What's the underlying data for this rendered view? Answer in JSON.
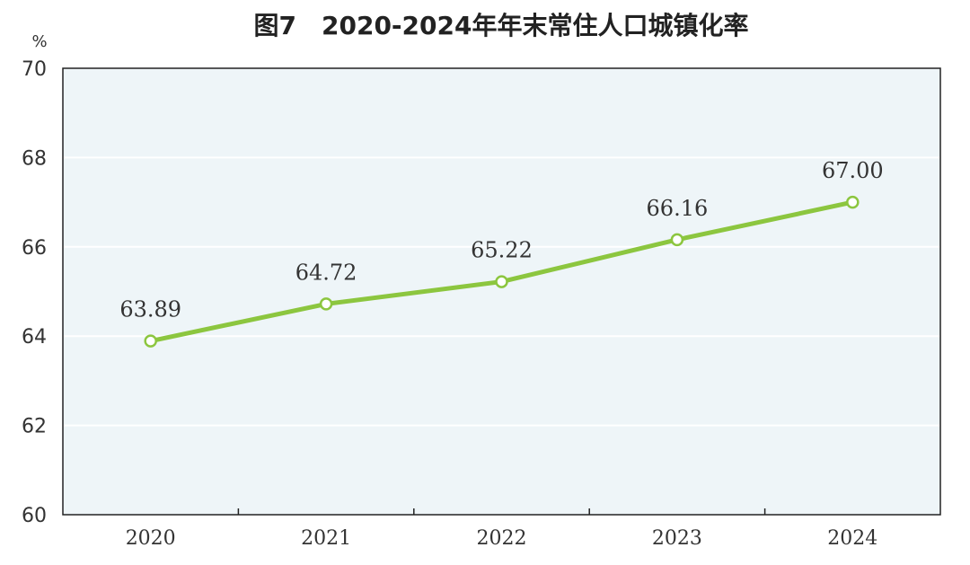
{
  "chart_data": {
    "type": "line",
    "title": "图7　2020-2024年年末常住人口城镇化率",
    "ylabel": "%",
    "xlabel": "",
    "categories": [
      "2020",
      "2021",
      "2022",
      "2023",
      "2024"
    ],
    "series": [
      {
        "values": [
          63.89,
          64.72,
          65.22,
          66.16,
          67.0
        ],
        "labels": [
          "63.89",
          "64.72",
          "65.22",
          "66.16",
          "67.00"
        ]
      }
    ],
    "ylim": [
      60,
      70
    ],
    "yticks": [
      "60",
      "62",
      "64",
      "66",
      "68",
      "70"
    ],
    "grid": true,
    "colors": {
      "line": "#8cc63f",
      "plot_background": "#eef5f8",
      "gridline": "#ffffff",
      "axis": "#222222"
    }
  }
}
